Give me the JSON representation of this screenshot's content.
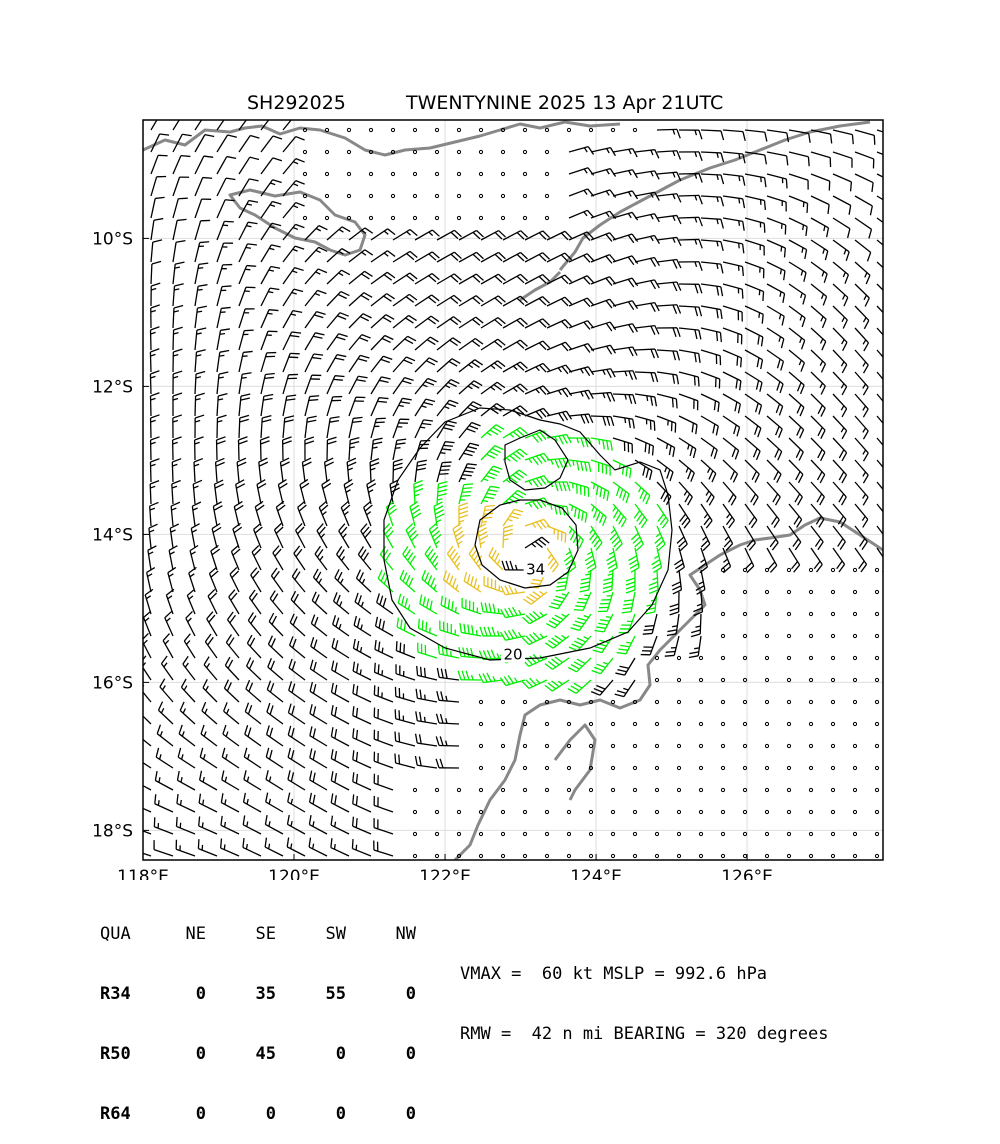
{
  "header": {
    "storm_id": "SH292025",
    "storm_name_time": "TWENTYNINE 2025 13 Apr 21UTC"
  },
  "map": {
    "lon_range": [
      118.0,
      127.8
    ],
    "lat_range": [
      -18.4,
      -8.4
    ],
    "lon_ticks": [
      {
        "value": 118,
        "label": "118°E"
      },
      {
        "value": 120,
        "label": "120°E"
      },
      {
        "value": 122,
        "label": "122°E"
      },
      {
        "value": 124,
        "label": "124°E"
      },
      {
        "value": 126,
        "label": "126°E"
      }
    ],
    "lat_ticks": [
      {
        "value": -10,
        "label": "10°S"
      },
      {
        "value": -12,
        "label": "12°S"
      },
      {
        "value": -14,
        "label": "14°S"
      },
      {
        "value": -16,
        "label": "16°S"
      },
      {
        "value": -18,
        "label": "18°S"
      }
    ],
    "storm_center": {
      "lon": 123.1,
      "lat": -14.3
    },
    "contour_labels": [
      {
        "text": "20",
        "lon": 122.9,
        "lat": -15.65
      },
      {
        "text": "34",
        "lon": 123.2,
        "lat": -14.5
      }
    ],
    "colors": {
      "coast": "#888888",
      "barb_default": "#000000",
      "barb_34kt": "#00ee00",
      "barb_50kt": "#e8c020",
      "grid": "#dddddd"
    }
  },
  "wind_radii": {
    "headers": [
      "QUA",
      "NE",
      "SE",
      "SW",
      "NW"
    ],
    "rows": [
      {
        "label": "R34",
        "values": [
          "0",
          "35",
          "55",
          "0"
        ]
      },
      {
        "label": "R50",
        "values": [
          "0",
          "45",
          "0",
          "0"
        ]
      },
      {
        "label": "R64",
        "values": [
          "0",
          "0",
          "0",
          "0"
        ]
      }
    ]
  },
  "summary": {
    "line1": "VMAX =  60 kt MSLP = 992.6 hPa",
    "line2": "RMW =  42 n mi BEARING = 320 degrees"
  }
}
